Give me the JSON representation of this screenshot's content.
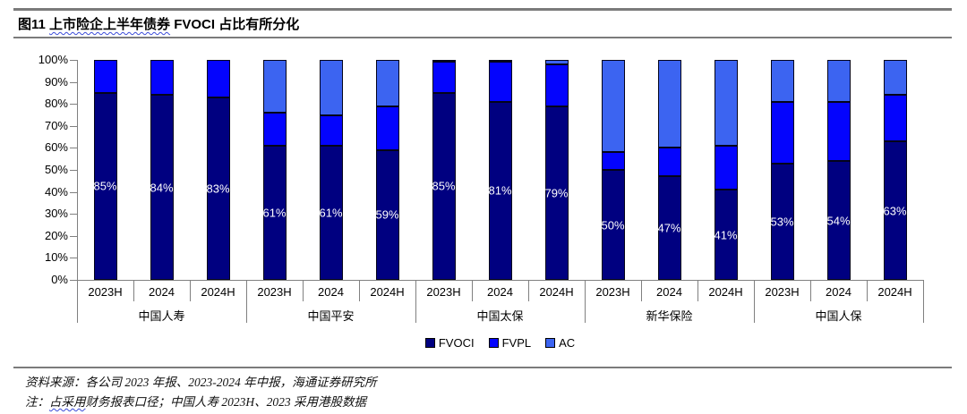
{
  "header": {
    "title_prefix": "图11",
    "title_underlined": "上市险企上半年债券",
    "title_rest": "FVOCI 占比有所分化"
  },
  "chart_data": {
    "type": "bar",
    "stacked": true,
    "percent_stacked": true,
    "title": "图11 上市险企上半年债券 FVOCI 占比有所分化",
    "xlabel": "",
    "ylabel": "",
    "ylim": [
      0,
      100
    ],
    "ytick_labels": [
      "100%",
      "90%",
      "80%",
      "70%",
      "60%",
      "50%",
      "40%",
      "30%",
      "20%",
      "10%",
      "0%"
    ],
    "legend_position": "bottom",
    "grid": false,
    "series_names": [
      "FVOCI",
      "FVPL",
      "AC"
    ],
    "colors": {
      "FVOCI": "#000080",
      "FVPL": "#0404fd",
      "AC": "#3c64f1"
    },
    "groups": [
      {
        "name": "中国人寿",
        "bars": [
          {
            "period": "2023H",
            "FVOCI": 85,
            "FVPL": 15,
            "AC": 0,
            "label": "85%"
          },
          {
            "period": "2024",
            "FVOCI": 84,
            "FVPL": 16,
            "AC": 0,
            "label": "84%"
          },
          {
            "period": "2024H",
            "FVOCI": 83,
            "FVPL": 17,
            "AC": 0,
            "label": "83%"
          }
        ]
      },
      {
        "name": "中国平安",
        "bars": [
          {
            "period": "2023H",
            "FVOCI": 61,
            "FVPL": 15,
            "AC": 24,
            "label": "61%"
          },
          {
            "period": "2024",
            "FVOCI": 61,
            "FVPL": 14,
            "AC": 25,
            "label": "61%"
          },
          {
            "period": "2024H",
            "FVOCI": 59,
            "FVPL": 20,
            "AC": 21,
            "label": "59%"
          }
        ]
      },
      {
        "name": "中国太保",
        "bars": [
          {
            "period": "2023H",
            "FVOCI": 85,
            "FVPL": 14,
            "AC": 1,
            "label": "85%"
          },
          {
            "period": "2024",
            "FVOCI": 81,
            "FVPL": 18,
            "AC": 1,
            "label": "81%"
          },
          {
            "period": "2024H",
            "FVOCI": 79,
            "FVPL": 19,
            "AC": 2,
            "label": "79%"
          }
        ]
      },
      {
        "name": "新华保险",
        "bars": [
          {
            "period": "2023H",
            "FVOCI": 50,
            "FVPL": 8,
            "AC": 42,
            "label": "50%"
          },
          {
            "period": "2024",
            "FVOCI": 47,
            "FVPL": 13,
            "AC": 40,
            "label": "47%"
          },
          {
            "period": "2024H",
            "FVOCI": 41,
            "FVPL": 20,
            "AC": 39,
            "label": "41%"
          }
        ]
      },
      {
        "name": "中国人保",
        "bars": [
          {
            "period": "2023H",
            "FVOCI": 53,
            "FVPL": 28,
            "AC": 19,
            "label": "53%"
          },
          {
            "period": "2024",
            "FVOCI": 54,
            "FVPL": 27,
            "AC": 19,
            "label": "54%"
          },
          {
            "period": "2024H",
            "FVOCI": 63,
            "FVPL": 21,
            "AC": 16,
            "label": "63%"
          }
        ]
      }
    ]
  },
  "legend": {
    "items": [
      {
        "label": "FVOCI",
        "color": "#000080"
      },
      {
        "label": "FVPL",
        "color": "#0404fd"
      },
      {
        "label": "AC",
        "color": "#3c64f1"
      }
    ]
  },
  "footer": {
    "source": "资料来源：各公司 2023 年报、2023-2024 年中报，海通证券研究所",
    "note_prefix": "注：",
    "note_underlined": "占采用",
    "note_rest": "财务报表口径；中国人寿 2023H、2023 采用港股数据"
  }
}
